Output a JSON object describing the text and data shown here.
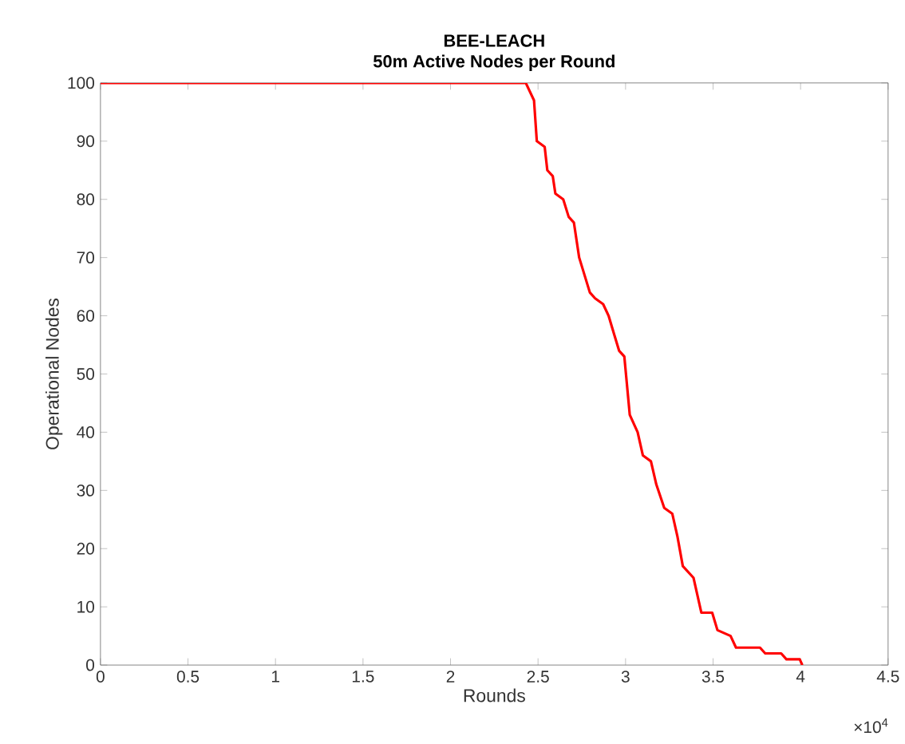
{
  "chart_data": {
    "type": "line",
    "title": "BEE-LEACH",
    "subtitle": "50m Active Nodes per Round",
    "xlabel": "Rounds",
    "ylabel": "Operational Nodes",
    "x": [
      0,
      2.43,
      2.477,
      2.493,
      2.538,
      2.553,
      2.584,
      2.599,
      2.644,
      2.675,
      2.705,
      2.735,
      2.796,
      2.826,
      2.872,
      2.903,
      2.933,
      2.963,
      2.993,
      3.024,
      3.069,
      3.099,
      3.145,
      3.176,
      3.221,
      3.267,
      3.297,
      3.327,
      3.388,
      3.433,
      3.495,
      3.525,
      3.6,
      3.631,
      3.768,
      3.798,
      3.889,
      3.919,
      3.995,
      4.01
    ],
    "series": [
      {
        "color": "#ff0000",
        "values": [
          100,
          100,
          97,
          90,
          89,
          85,
          84,
          81,
          80,
          77,
          76,
          70,
          64,
          63,
          62,
          60,
          57,
          54,
          53,
          43,
          40,
          36,
          35,
          31,
          27,
          26,
          22,
          17,
          15,
          9,
          9,
          6,
          5,
          3,
          3,
          2,
          2,
          1,
          1,
          0
        ]
      }
    ],
    "xlim": [
      0,
      4.5
    ],
    "ylim": [
      0,
      100
    ],
    "xticks": [
      0,
      0.5,
      1,
      1.5,
      2,
      2.5,
      3,
      3.5,
      4,
      4.5
    ],
    "yticks": [
      0,
      10,
      20,
      30,
      40,
      50,
      60,
      70,
      80,
      90,
      100
    ],
    "annotations": [
      "×10$^{4}$"
    ],
    "grid": false,
    "marker": "none",
    "line_style": "solid"
  }
}
